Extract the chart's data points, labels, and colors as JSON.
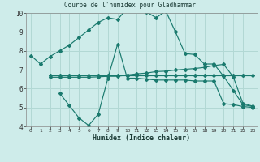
{
  "line1_x": [
    0,
    1,
    2,
    3,
    4,
    5,
    6,
    7,
    8,
    9,
    10,
    11,
    12,
    13,
    14,
    15,
    16,
    17,
    18,
    19,
    20,
    21,
    22,
    23
  ],
  "line1_y": [
    7.75,
    7.3,
    7.7,
    8.0,
    8.3,
    8.7,
    9.1,
    9.5,
    9.75,
    9.65,
    10.25,
    10.15,
    10.05,
    9.75,
    10.1,
    9.0,
    7.85,
    7.8,
    7.3,
    7.3,
    6.65,
    5.9,
    5.15,
    5.05
  ],
  "line2_x": [
    3,
    4,
    5,
    6,
    7,
    8,
    9,
    10,
    11,
    12,
    13,
    14,
    15,
    16,
    17,
    18,
    19,
    20,
    21,
    22,
    23
  ],
  "line2_y": [
    5.75,
    5.1,
    4.45,
    4.05,
    4.65,
    6.55,
    8.35,
    6.55,
    6.55,
    6.5,
    6.45,
    6.45,
    6.45,
    6.45,
    6.4,
    6.4,
    6.4,
    5.2,
    5.15,
    5.05,
    5.0
  ],
  "line3_x": [
    2,
    3,
    4,
    5,
    6,
    7,
    8,
    9,
    10,
    11,
    12,
    13,
    14,
    15,
    16,
    17,
    18,
    19,
    20,
    21,
    22,
    23
  ],
  "line3_y": [
    6.6,
    6.6,
    6.6,
    6.6,
    6.6,
    6.62,
    6.65,
    6.65,
    6.72,
    6.78,
    6.82,
    6.9,
    6.92,
    6.98,
    7.02,
    7.06,
    7.12,
    7.22,
    7.28,
    6.62,
    5.22,
    5.07
  ],
  "line4_x": [
    2,
    3,
    4,
    5,
    6,
    7,
    8,
    9,
    10,
    11,
    12,
    13,
    14,
    15,
    16,
    17,
    18,
    19,
    20,
    21,
    22,
    23
  ],
  "line4_y": [
    6.68,
    6.68,
    6.68,
    6.68,
    6.68,
    6.68,
    6.68,
    6.68,
    6.68,
    6.68,
    6.68,
    6.68,
    6.68,
    6.68,
    6.68,
    6.68,
    6.68,
    6.68,
    6.68,
    6.68,
    6.68,
    6.68
  ],
  "color": "#1a7a6e",
  "bg_color": "#ceecea",
  "grid_color": "#b2d8d4",
  "xlabel": "Humidex (Indice chaleur)",
  "title": "Courbe de l'humidex pour Gladhammar",
  "ylim": [
    4,
    10
  ],
  "xlim": [
    -0.5,
    23.5
  ],
  "yticks": [
    4,
    5,
    6,
    7,
    8,
    9,
    10
  ],
  "xticks": [
    0,
    1,
    2,
    3,
    4,
    5,
    6,
    7,
    8,
    9,
    10,
    11,
    12,
    13,
    14,
    15,
    16,
    17,
    18,
    19,
    20,
    21,
    22,
    23
  ]
}
